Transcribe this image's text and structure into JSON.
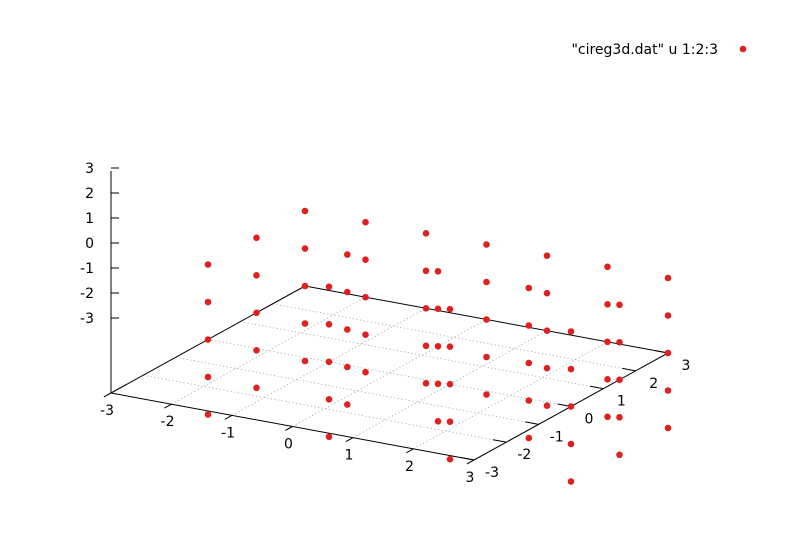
{
  "chart_data": {
    "type": "scatter",
    "legend": {
      "label": "\"cireg3d.dat\" u 1:2:3",
      "position": "top-right"
    },
    "marker_color": "#e02020",
    "grid": true,
    "x_ticks": [
      "-3",
      "-2",
      "-1",
      "0",
      "1",
      "2",
      "3"
    ],
    "y_ticks": [
      "-3",
      "-2",
      "-1",
      "0",
      "1",
      "2",
      "3"
    ],
    "z_ticks": [
      "-3",
      "-2",
      "-1",
      "0",
      "1",
      "2",
      "3"
    ],
    "xlim": [
      -3,
      3
    ],
    "ylim": [
      -3,
      3
    ],
    "zlim": [
      -3,
      3
    ],
    "points": [
      [
        -3,
        3,
        3
      ],
      [
        -3,
        3,
        1.5
      ],
      [
        -3,
        3,
        0
      ],
      [
        -3,
        3,
        -1.5
      ],
      [
        -3,
        3,
        -3
      ],
      [
        -2,
        3,
        3
      ],
      [
        -2,
        3,
        1.5
      ],
      [
        -2,
        3,
        0
      ],
      [
        -2,
        3,
        -1.5
      ],
      [
        -2,
        3,
        -3
      ],
      [
        -1,
        3,
        3
      ],
      [
        -1,
        3,
        1.5
      ],
      [
        -1,
        3,
        0
      ],
      [
        -1,
        3,
        -1.5
      ],
      [
        -1,
        3,
        -3
      ],
      [
        0,
        3,
        3
      ],
      [
        0,
        3,
        1.5
      ],
      [
        0,
        3,
        0
      ],
      [
        0,
        3,
        -1.5
      ],
      [
        0,
        3,
        -3
      ],
      [
        1,
        3,
        3
      ],
      [
        1,
        3,
        1.5
      ],
      [
        1,
        3,
        0
      ],
      [
        1,
        3,
        -1.5
      ],
      [
        1,
        3,
        -3
      ],
      [
        2,
        3,
        3
      ],
      [
        2,
        3,
        1.5
      ],
      [
        2,
        3,
        0
      ],
      [
        2,
        3,
        -1.5
      ],
      [
        2,
        3,
        -3
      ],
      [
        3,
        3,
        3
      ],
      [
        3,
        3,
        1.5
      ],
      [
        3,
        3,
        0
      ],
      [
        3,
        3,
        -1.5
      ],
      [
        3,
        3,
        -3
      ],
      [
        -3,
        1.5,
        3
      ],
      [
        -3,
        1.5,
        1.5
      ],
      [
        -3,
        1.5,
        0
      ],
      [
        -3,
        1.5,
        -1.5
      ],
      [
        -3,
        1.5,
        -3
      ],
      [
        -1.5,
        1.5,
        3
      ],
      [
        -1.5,
        1.5,
        1.5
      ],
      [
        -1.5,
        1.5,
        0
      ],
      [
        -1.5,
        1.5,
        -1.5
      ],
      [
        -1.5,
        1.5,
        -3
      ],
      [
        0,
        1.5,
        3
      ],
      [
        0,
        1.5,
        1.5
      ],
      [
        0,
        1.5,
        0
      ],
      [
        0,
        1.5,
        -1.5
      ],
      [
        0,
        1.5,
        -3
      ],
      [
        1.5,
        1.5,
        3
      ],
      [
        1.5,
        1.5,
        1.5
      ],
      [
        1.5,
        1.5,
        0
      ],
      [
        1.5,
        1.5,
        -1.5
      ],
      [
        1.5,
        1.5,
        -3
      ],
      [
        3,
        1.5,
        3
      ],
      [
        3,
        1.5,
        1.5
      ],
      [
        3,
        1.5,
        0
      ],
      [
        3,
        1.5,
        -1.5
      ],
      [
        3,
        1.5,
        -3
      ],
      [
        -3,
        0,
        3
      ],
      [
        -3,
        0,
        1.5
      ],
      [
        -3,
        0,
        0
      ],
      [
        -3,
        0,
        -1.5
      ],
      [
        -3,
        0,
        -3
      ],
      [
        -1,
        0,
        3
      ],
      [
        -1,
        0,
        1.5
      ],
      [
        -1,
        0,
        0
      ],
      [
        -1,
        0,
        -1.5
      ],
      [
        -1,
        0,
        -3
      ],
      [
        1,
        0,
        3
      ],
      [
        1,
        0,
        1.5
      ],
      [
        1,
        0,
        0
      ],
      [
        1,
        0,
        -1.5
      ],
      [
        1,
        0,
        -3
      ],
      [
        3,
        0,
        3
      ],
      [
        3,
        0,
        1.5
      ],
      [
        3,
        0,
        0
      ],
      [
        3,
        0,
        -1.5
      ],
      [
        3,
        0,
        -3
      ]
    ]
  }
}
